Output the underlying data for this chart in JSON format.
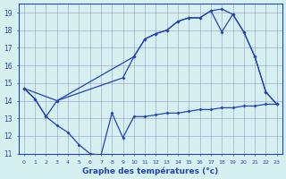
{
  "title": "Graphe des températures (°c)",
  "bg_color": "#d6f0f0",
  "grid_color": "#9999cc",
  "line_color": "#2244bb",
  "xlim": [
    -0.5,
    23.5
  ],
  "ylim": [
    11,
    19.5
  ],
  "xticks": [
    0,
    1,
    2,
    3,
    4,
    5,
    6,
    7,
    8,
    9,
    10,
    11,
    12,
    13,
    14,
    15,
    16,
    17,
    18,
    19,
    20,
    21,
    22,
    23
  ],
  "yticks": [
    11,
    12,
    13,
    14,
    15,
    16,
    17,
    18,
    19
  ],
  "line1_x": [
    0,
    1,
    2,
    3,
    4,
    5,
    6,
    7,
    8,
    9,
    10,
    11,
    12,
    13,
    14,
    15,
    16,
    17,
    18,
    19,
    20,
    21,
    22,
    23
  ],
  "line1_y": [
    14.7,
    14.1,
    13.1,
    12.6,
    12.2,
    11.5,
    11.0,
    10.9,
    13.3,
    11.9,
    13.1,
    13.1,
    13.2,
    13.3,
    13.3,
    13.4,
    13.5,
    13.5,
    13.6,
    13.6,
    13.7,
    13.7,
    13.8,
    13.8
  ],
  "line2_x": [
    0,
    1,
    2,
    3,
    9,
    10,
    11,
    12,
    13,
    14,
    15,
    16,
    17,
    18,
    19,
    20,
    21,
    22,
    23
  ],
  "line2_y": [
    14.7,
    14.1,
    13.1,
    14.0,
    15.3,
    16.5,
    17.5,
    17.8,
    18.0,
    18.5,
    18.7,
    18.7,
    19.1,
    19.2,
    18.9,
    17.9,
    16.5,
    14.5,
    13.8
  ],
  "line3_x": [
    0,
    3,
    10,
    11,
    12,
    13,
    14,
    15,
    16,
    17,
    18,
    19,
    20,
    21,
    22,
    23
  ],
  "line3_y": [
    14.7,
    14.0,
    16.5,
    17.5,
    17.8,
    18.0,
    18.5,
    18.7,
    18.7,
    19.1,
    17.9,
    18.9,
    17.9,
    16.5,
    14.5,
    13.8
  ],
  "marker": "D",
  "markersize": 2.0,
  "linewidth": 0.9,
  "xlabel_fontsize": 6.5,
  "ytick_fontsize": 5.5,
  "xtick_fontsize": 4.5
}
